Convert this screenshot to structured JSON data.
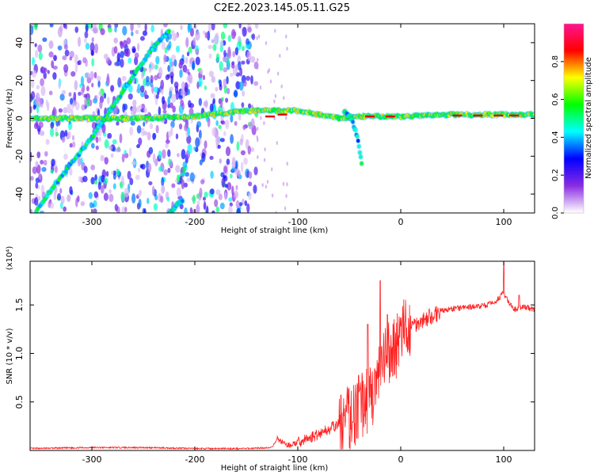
{
  "title": "C2E2.2023.145.05.11.G25",
  "chart_data": [
    {
      "type": "heatmap",
      "xlabel": "Height of straight line (km)",
      "ylabel": "Frequency (Hz)",
      "xlim": [
        -360,
        130
      ],
      "ylim": [
        -50,
        50
      ],
      "x_ticks": [
        -300,
        -200,
        -100,
        0,
        100
      ],
      "y_ticks": [
        -40,
        -20,
        0,
        20,
        40
      ],
      "colorbar": {
        "label": "Normalized spectral amplitude",
        "range": [
          0,
          1
        ],
        "ticks": [
          0.0,
          0.2,
          0.4,
          0.6,
          0.8
        ],
        "tick_labels": [
          "0.0",
          "0.2",
          "0.4",
          "0.6",
          "0.8"
        ],
        "colors": [
          "#ffffff",
          "#8a2be2",
          "#0000ff",
          "#00ffff",
          "#00ff00",
          "#ffff00",
          "#ff0000",
          "#ff1493"
        ]
      },
      "features": [
        {
          "name": "diagonal chirp",
          "x": [
            -355,
            -340,
            -320,
            -300,
            -280,
            -260,
            -240,
            -225
          ],
          "y": [
            -50,
            -38,
            -24,
            -10,
            6,
            22,
            38,
            46
          ],
          "level": 0.45
        },
        {
          "name": "lower chirp",
          "x": [
            -225,
            -212
          ],
          "y": [
            -50,
            -43
          ],
          "level": 0.45
        },
        {
          "name": "center line",
          "x": [
            -360,
            -300,
            -250,
            -200,
            -150,
            -120,
            -100,
            -80,
            -60,
            -40,
            -20,
            0,
            50,
            100,
            130
          ],
          "y": [
            0,
            0,
            0,
            1,
            4,
            4,
            4,
            2,
            0,
            1,
            1,
            1,
            2,
            2,
            2
          ],
          "level": 0.6
        },
        {
          "name": "side branch",
          "x": [
            -55,
            -48,
            -42,
            -38
          ],
          "y": [
            4,
            0,
            -10,
            -24
          ],
          "level": 0.4
        }
      ],
      "background_noise": {
        "x_range": [
          -360,
          -140
        ],
        "level": 0.15
      }
    },
    {
      "type": "line",
      "xlabel": "Height of straight line (km)",
      "ylabel": "SNR (10 * v/v)",
      "y_scale_label": "(x10⁴)",
      "xlim": [
        -360,
        130
      ],
      "ylim": [
        0,
        1.95
      ],
      "x_ticks": [
        -300,
        -200,
        -100,
        0,
        100
      ],
      "y_ticks": [
        0.5,
        1.0,
        1.5
      ],
      "y_tick_labels": [
        "0.5",
        "1.0",
        "1.5"
      ],
      "color": "#ff2020",
      "series": [
        {
          "x": [
            -360,
            -300,
            -250,
            -200,
            -150,
            -125,
            -120,
            -110,
            -100,
            -90,
            -80,
            -70,
            -60,
            -50,
            -40,
            -30,
            -20,
            -15,
            -10,
            0,
            10,
            20,
            30,
            40,
            50,
            60,
            70,
            80,
            90,
            100,
            105,
            110,
            120,
            130
          ],
          "y": [
            0.02,
            0.03,
            0.03,
            0.02,
            0.02,
            0.03,
            0.12,
            0.05,
            0.08,
            0.12,
            0.17,
            0.22,
            0.27,
            0.33,
            0.45,
            0.55,
            0.75,
            0.95,
            1.0,
            1.18,
            1.28,
            1.34,
            1.38,
            1.44,
            1.46,
            1.47,
            1.48,
            1.49,
            1.52,
            1.62,
            1.52,
            1.45,
            1.48,
            1.45
          ],
          "spikes": [
            [
              -40,
              0.62
            ],
            [
              -32,
              1.3
            ],
            [
              -20,
              1.75
            ],
            [
              -13,
              1.4
            ],
            [
              100,
              1.95
            ],
            [
              115,
              1.6
            ]
          ]
        }
      ]
    }
  ]
}
